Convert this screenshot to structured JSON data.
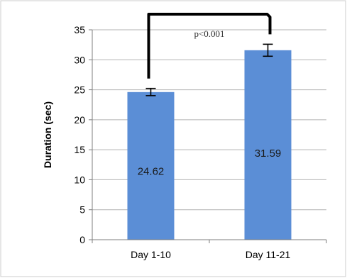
{
  "chart_data": {
    "type": "bar",
    "categories": [
      "Day 1-10",
      "Day 11-21"
    ],
    "values": [
      24.62,
      31.59
    ],
    "value_labels": [
      "24.62",
      "31.59"
    ],
    "error_bars": [
      0.6,
      1.0
    ],
    "ylabel": "Duration (sec)",
    "xlabel": "",
    "ylim": [
      0,
      35
    ],
    "y_ticks": [
      0,
      5,
      10,
      15,
      20,
      25,
      30,
      35
    ],
    "y_tick_labels": [
      "0",
      "5",
      "10",
      "15",
      "20",
      "25",
      "30",
      "35"
    ],
    "grid": true,
    "annotation": "p<0.001",
    "colors": {
      "bar": "#5b8ed6",
      "grid": "#b3b3b3",
      "axis": "#7f7f7f",
      "bracket": "#000000",
      "border": "#cccccc"
    }
  }
}
